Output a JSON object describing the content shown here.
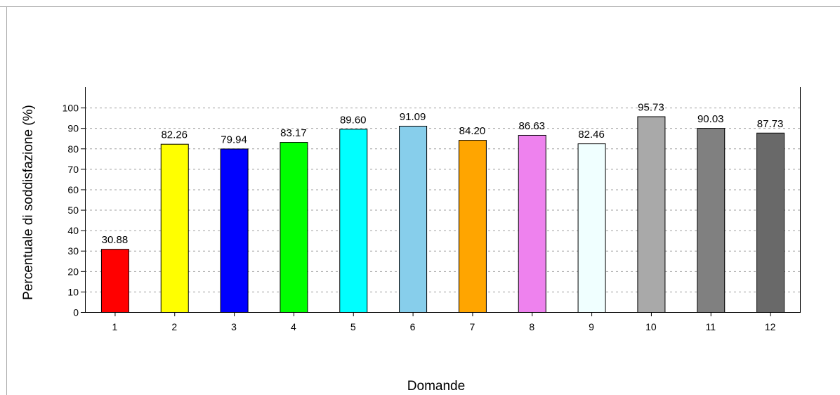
{
  "chart_data": {
    "type": "bar",
    "title": "",
    "xlabel": "Domande",
    "ylabel": "Percentuale di soddisfazione (%)",
    "ylim": [
      0,
      110
    ],
    "yticks": [
      0,
      10,
      20,
      30,
      40,
      50,
      60,
      70,
      80,
      90,
      100
    ],
    "grid": true,
    "categories": [
      "1",
      "2",
      "3",
      "4",
      "5",
      "6",
      "7",
      "8",
      "9",
      "10",
      "11",
      "12"
    ],
    "values": [
      30.88,
      82.26,
      79.94,
      83.17,
      89.6,
      91.09,
      84.2,
      86.63,
      82.46,
      95.73,
      90.03,
      87.73
    ],
    "value_labels": [
      "30.88",
      "82.26",
      "79.94",
      "83.17",
      "89.60",
      "91.09",
      "84.20",
      "86.63",
      "82.46",
      "95.73",
      "90.03",
      "87.73"
    ],
    "colors": [
      "#ff0000",
      "#ffff00",
      "#0000ff",
      "#00ff00",
      "#00ffff",
      "#87ceeb",
      "#ffa500",
      "#ee82ee",
      "#f0ffff",
      "#a9a9a9",
      "#808080",
      "#696969"
    ]
  }
}
